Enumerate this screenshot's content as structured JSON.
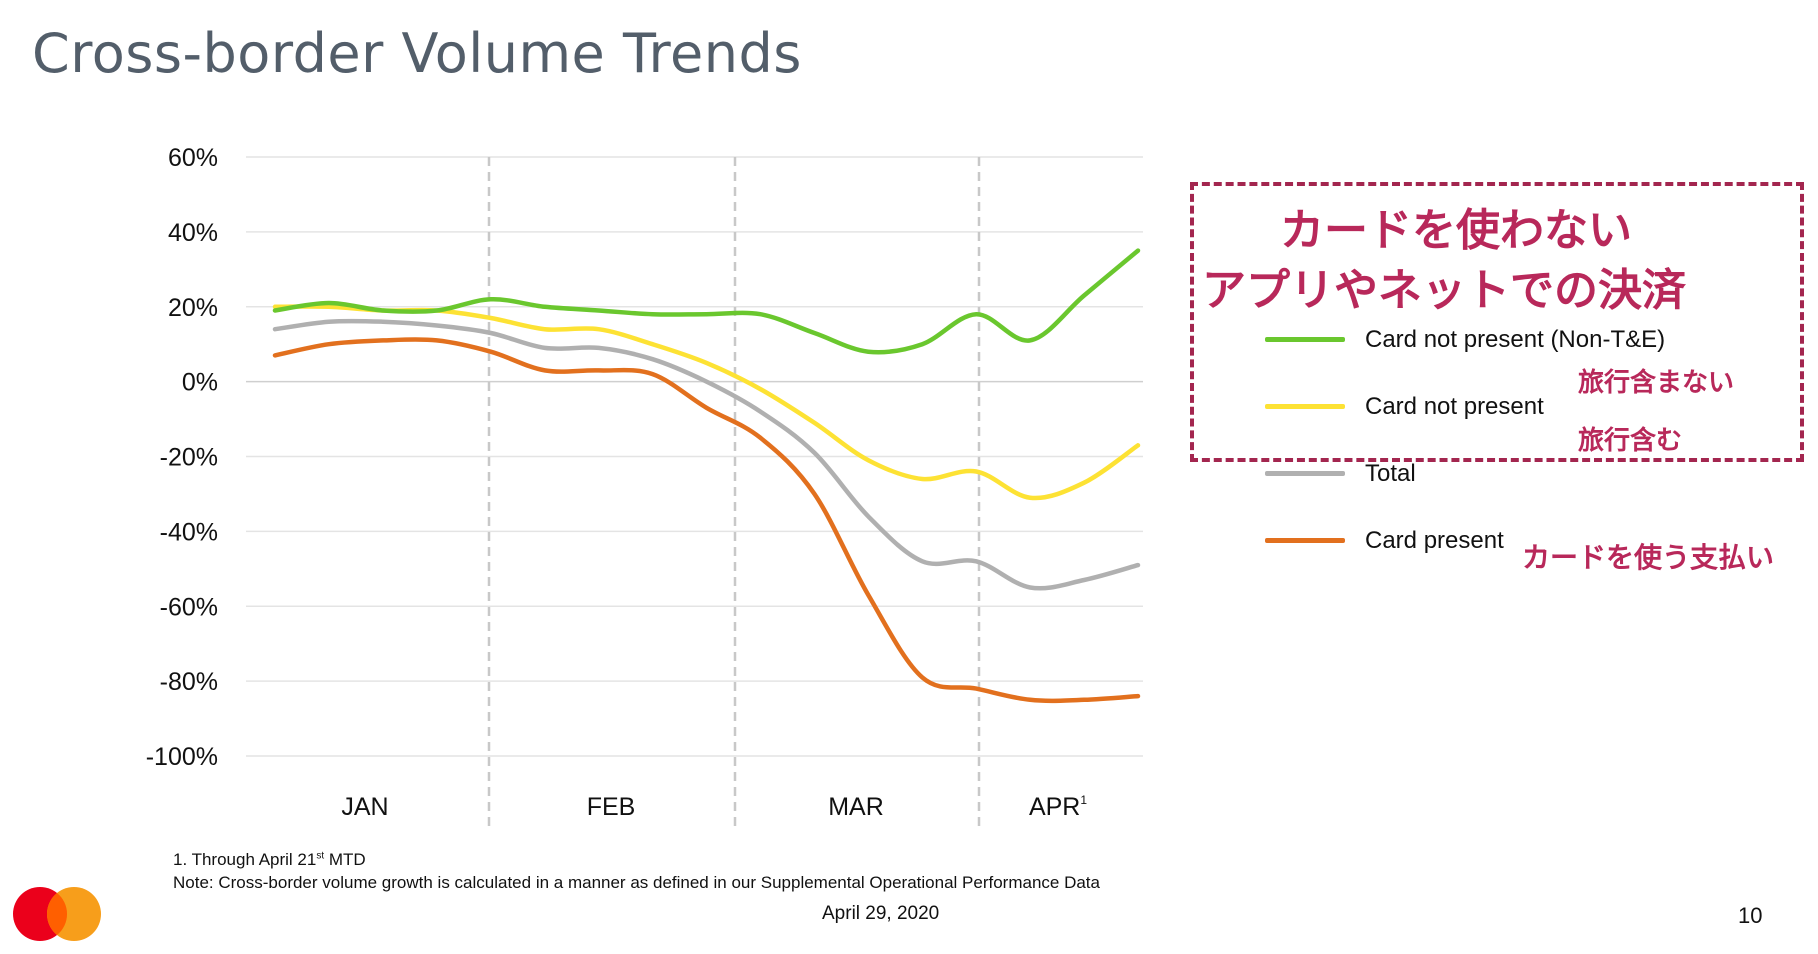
{
  "slide": {
    "title": "Cross-border Volume Trends",
    "footnote": "1.  Through April 21",
    "footnote_sup": "st",
    "footnote_tail": " MTD",
    "note": "Note: Cross-border volume growth is calculated in a manner as defined in our Supplemental Operational Performance Data",
    "date": "April 29, 2020",
    "page_number": "10",
    "logo_icon": "mastercard-logo"
  },
  "annotations": {
    "box_title_line1": "カードを使わない",
    "box_title_line2": "アプリやネットでの決済",
    "cnp_non_te": "旅行含まない",
    "cnp": "旅行含む",
    "card_present": "カードを使う支払い",
    "color": "#b8285a"
  },
  "legend": [
    {
      "label": "Card not present (Non-T&E)",
      "color": "#6ac72e"
    },
    {
      "label": "Card not present",
      "color": "#fde234"
    },
    {
      "label": "Total",
      "color": "#b0b0b0"
    },
    {
      "label": "Card present",
      "color": "#e2701e"
    }
  ],
  "chart_data": {
    "type": "line",
    "title": "Cross-border Volume Trends",
    "ylim": [
      -100,
      60
    ],
    "yticks": [
      "60%",
      "40%",
      "20%",
      "0%",
      "-20%",
      "-40%",
      "-60%",
      "-80%",
      "-100%"
    ],
    "ytick_values": [
      60,
      40,
      20,
      0,
      -20,
      -40,
      -60,
      -80,
      -100
    ],
    "categories": [
      "JAN",
      "FEB",
      "MAR",
      "APR"
    ],
    "category_superscripts": [
      "",
      "",
      "",
      "1"
    ],
    "grid": true,
    "legend_position": "right",
    "x": [
      "Jan 1",
      "Jan 7",
      "Jan 14",
      "Jan 21",
      "Jan 28",
      "Feb 4",
      "Feb 11",
      "Feb 18",
      "Feb 25",
      "Mar 3",
      "Mar 10",
      "Mar 17",
      "Mar 24",
      "Mar 31",
      "Apr 7",
      "Apr 14",
      "Apr 21"
    ],
    "series": [
      {
        "name": "Card not present (Non-T&E)",
        "color": "#6ac72e",
        "values": [
          19,
          21,
          19,
          19,
          22,
          20,
          19,
          18,
          18,
          18,
          13,
          8,
          10,
          18,
          11,
          23,
          35
        ]
      },
      {
        "name": "Card not present",
        "color": "#fde234",
        "values": [
          20,
          20,
          19,
          19,
          17,
          14,
          14,
          10,
          5,
          -2,
          -11,
          -21,
          -26,
          -24,
          -31,
          -27,
          -17
        ]
      },
      {
        "name": "Total",
        "color": "#b0b0b0",
        "values": [
          14,
          16,
          16,
          15,
          13,
          9,
          9,
          6,
          0,
          -8,
          -19,
          -36,
          -48,
          -48,
          -55,
          -53,
          -49
        ]
      },
      {
        "name": "Card present",
        "color": "#e2701e",
        "values": [
          7,
          10,
          11,
          11,
          8,
          3,
          3,
          2,
          -7,
          -15,
          -30,
          -57,
          -79,
          -82,
          -85,
          -85,
          -84
        ]
      }
    ]
  }
}
